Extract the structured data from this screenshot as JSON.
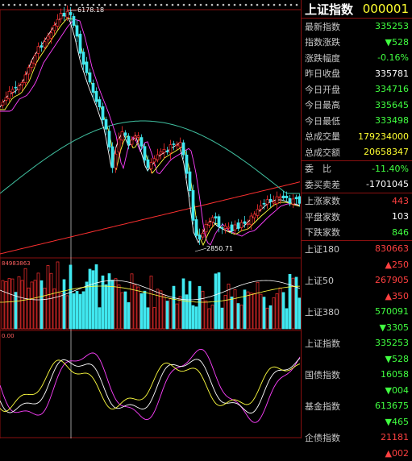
{
  "header": {
    "title": "上证指数",
    "code": "000001"
  },
  "quote": [
    {
      "label": "最新指数",
      "value": "335253",
      "color": "#40ff40"
    },
    {
      "label": "指数涨跌",
      "value": "▼528",
      "color": "#40ff40"
    },
    {
      "label": "涨跌幅度",
      "value": "-0.16%",
      "color": "#40ff40"
    },
    {
      "label": "昨日收盘",
      "value": "335781",
      "color": "#ffffff"
    },
    {
      "label": "今日开盘",
      "value": "334716",
      "color": "#40ff40"
    },
    {
      "label": "今日最高",
      "value": "335645",
      "color": "#40ff40"
    },
    {
      "label": "今日最低",
      "value": "333498",
      "color": "#40ff40"
    },
    {
      "label": "总成交量",
      "value": "179234000",
      "color": "#ffff30"
    },
    {
      "label": "总成交额",
      "value": "20658347",
      "color": "#ffff30"
    }
  ],
  "order": [
    {
      "label": "委　比",
      "value": "-11.40%",
      "color": "#40ff40"
    },
    {
      "label": "委买卖差",
      "value": "-1701045",
      "color": "#ffffff"
    }
  ],
  "breadth": [
    {
      "label": "上涨家数",
      "value": "443",
      "color": "#ff4040"
    },
    {
      "label": "平盘家数",
      "value": "103",
      "color": "#ffffff"
    },
    {
      "label": "下跌家数",
      "value": "846",
      "color": "#40ff40"
    }
  ],
  "indices": [
    {
      "name": "上证180",
      "value": "830663",
      "change": "▲250",
      "vcolor": "#ff4040",
      "ccolor": "#ff4040"
    },
    {
      "name": "上证50",
      "value": "267905",
      "change": "▲350",
      "vcolor": "#ff4040",
      "ccolor": "#ff4040"
    },
    {
      "name": "上证380",
      "value": "570091",
      "change": "▼3305",
      "vcolor": "#40ff40",
      "ccolor": "#40ff40"
    },
    {
      "name": "上证指数",
      "value": "335253",
      "change": "▼528",
      "vcolor": "#40ff40",
      "ccolor": "#40ff40"
    },
    {
      "name": "国债指数",
      "value": "16058",
      "change": "▼004",
      "vcolor": "#40ff40",
      "ccolor": "#40ff40"
    },
    {
      "name": "基金指数",
      "value": "613675",
      "change": "▼465",
      "vcolor": "#40ff40",
      "ccolor": "#40ff40"
    },
    {
      "name": "企债指数",
      "value": "21181",
      "change": "▲002",
      "vcolor": "#ff4040",
      "ccolor": "#ff4040"
    }
  ],
  "chart_labels": {
    "high_label": "6178.18",
    "low_label": "2850.71",
    "volume_label": "84983863",
    "osc_label": "0.00"
  },
  "colors": {
    "up": "#ff3030",
    "down": "#40e8f0",
    "ma5": "#ffffff",
    "ma10": "#ffff40",
    "ma20": "#ff40ff",
    "ma60": "#40c0a0",
    "ma250": "#ff3030"
  }
}
